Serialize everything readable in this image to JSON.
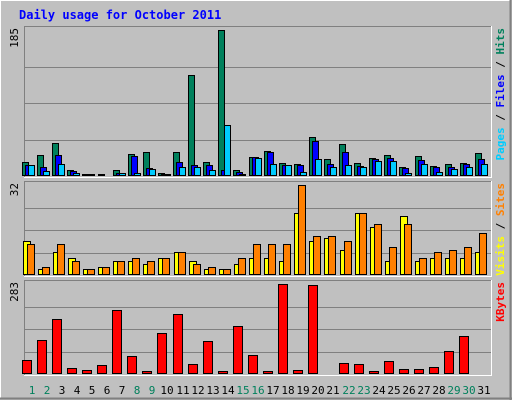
{
  "title": "Daily usage for October 2011",
  "chart_data": [
    {
      "type": "bar",
      "panel": "hits-files-pages",
      "ymax_label": "185",
      "ylim": [
        0,
        185
      ],
      "grid": true,
      "right_labels": [
        {
          "text": "Pages",
          "color": "#00ccff"
        },
        {
          "text": " / ",
          "color": "#000000"
        },
        {
          "text": "Files",
          "color": "#0000ff"
        },
        {
          "text": " / ",
          "color": "#000000"
        },
        {
          "text": "Hits",
          "color": "#00805c"
        }
      ],
      "series": [
        {
          "key": "hits",
          "color": "#00805c",
          "values": [
            18,
            26,
            42,
            8,
            3,
            2,
            8,
            28,
            30,
            4,
            30,
            128,
            18,
            185,
            7,
            24,
            32,
            16,
            15,
            49,
            22,
            40,
            16,
            23,
            26,
            11,
            25,
            13,
            15,
            17,
            29
          ]
        },
        {
          "key": "files",
          "color": "#0000ff",
          "values": [
            14,
            12,
            26,
            6,
            2,
            1,
            4,
            25,
            10,
            3,
            18,
            14,
            14,
            7,
            5,
            24,
            30,
            14,
            14,
            44,
            15,
            30,
            13,
            21,
            23,
            10,
            20,
            11,
            11,
            15,
            21
          ]
        },
        {
          "key": "pages",
          "color": "#00ccff",
          "values": [
            14,
            6,
            15,
            4,
            2,
            1,
            4,
            4,
            9,
            3,
            11,
            11,
            7,
            65,
            3,
            23,
            15,
            14,
            5,
            22,
            11,
            14,
            11,
            19,
            19,
            4,
            15,
            5,
            9,
            12,
            15
          ]
        }
      ]
    },
    {
      "type": "bar",
      "panel": "visits-sites",
      "ymax_label": "32",
      "ylim": [
        0,
        32
      ],
      "grid": true,
      "right_labels": [
        {
          "text": "Visits",
          "color": "#ffff00"
        },
        {
          "text": " / ",
          "color": "#000000"
        },
        {
          "text": "Sites",
          "color": "#ff8000"
        }
      ],
      "series": [
        {
          "key": "visits",
          "color": "#ffff00",
          "values": [
            12,
            2,
            8,
            6,
            2,
            3,
            5,
            5,
            4,
            6,
            8,
            5,
            2,
            2,
            4,
            6,
            6,
            5,
            22,
            12,
            13,
            9,
            22,
            17,
            5,
            21,
            5,
            6,
            6,
            6,
            8
          ]
        },
        {
          "key": "sites",
          "color": "#ff8000",
          "values": [
            11,
            3,
            11,
            5,
            2,
            3,
            5,
            6,
            5,
            6,
            8,
            4,
            3,
            2,
            6,
            11,
            11,
            11,
            32,
            14,
            14,
            12,
            22,
            18,
            10,
            18,
            6,
            8,
            9,
            10,
            15
          ]
        }
      ]
    },
    {
      "type": "bar",
      "panel": "kbytes",
      "ymax_label": "283",
      "ylim": [
        0,
        283
      ],
      "grid": true,
      "right_labels": [
        {
          "text": "KBytes",
          "color": "#ff0000"
        }
      ],
      "series": [
        {
          "key": "kbytes",
          "color": "#ff0000",
          "values": [
            45,
            108,
            174,
            18,
            12,
            28,
            200,
            58,
            10,
            130,
            188,
            30,
            105,
            10,
            152,
            60,
            8,
            283,
            14,
            280,
            3,
            35,
            30,
            10,
            42,
            15,
            17,
            22,
            72,
            120,
            0
          ]
        }
      ]
    }
  ],
  "days": [
    {
      "label": "1",
      "weekend": true
    },
    {
      "label": "2",
      "weekend": true
    },
    {
      "label": "3",
      "weekend": false
    },
    {
      "label": "4",
      "weekend": false
    },
    {
      "label": "5",
      "weekend": false
    },
    {
      "label": "6",
      "weekend": false
    },
    {
      "label": "7",
      "weekend": false
    },
    {
      "label": "8",
      "weekend": true
    },
    {
      "label": "9",
      "weekend": true
    },
    {
      "label": "10",
      "weekend": false
    },
    {
      "label": "11",
      "weekend": false
    },
    {
      "label": "12",
      "weekend": false
    },
    {
      "label": "13",
      "weekend": false
    },
    {
      "label": "14",
      "weekend": false
    },
    {
      "label": "15",
      "weekend": true
    },
    {
      "label": "16",
      "weekend": true
    },
    {
      "label": "17",
      "weekend": false
    },
    {
      "label": "18",
      "weekend": false
    },
    {
      "label": "19",
      "weekend": false
    },
    {
      "label": "20",
      "weekend": false
    },
    {
      "label": "21",
      "weekend": false
    },
    {
      "label": "22",
      "weekend": true
    },
    {
      "label": "23",
      "weekend": true
    },
    {
      "label": "24",
      "weekend": false
    },
    {
      "label": "25",
      "weekend": false
    },
    {
      "label": "26",
      "weekend": false
    },
    {
      "label": "27",
      "weekend": false
    },
    {
      "label": "28",
      "weekend": false
    },
    {
      "label": "29",
      "weekend": true
    },
    {
      "label": "30",
      "weekend": true
    },
    {
      "label": "31",
      "weekend": false
    }
  ],
  "colors": {
    "background": "#c0c0c0",
    "title": "#0000ff",
    "weekday_label": "#000000",
    "weekend_label": "#00805c"
  }
}
